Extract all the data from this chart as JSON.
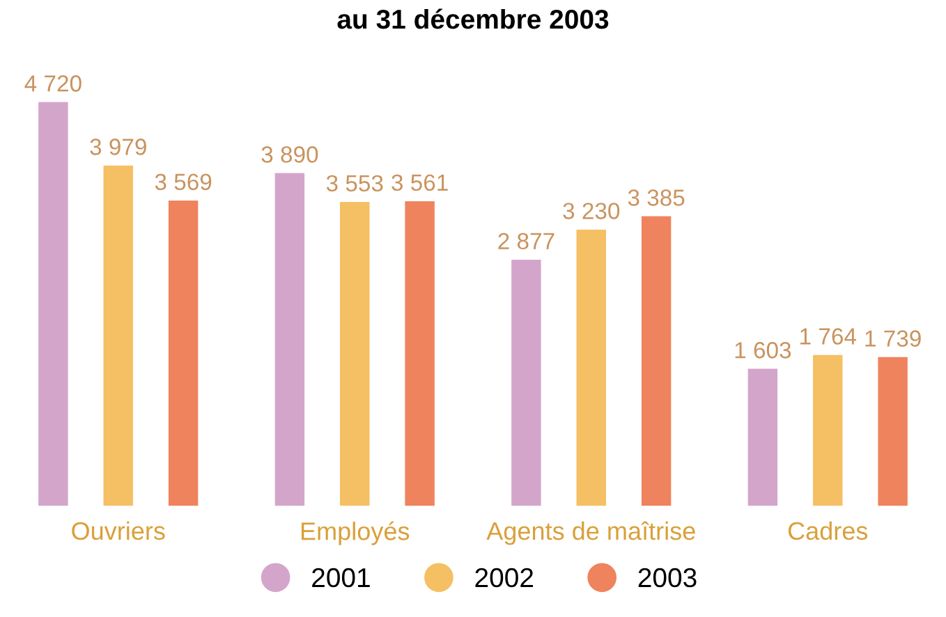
{
  "chart_data": {
    "type": "bar",
    "title": "au 31 décembre 2003",
    "categories": [
      "Ouvriers",
      "Employés",
      "Agents de maîtrise",
      "Cadres"
    ],
    "series": [
      {
        "name": "2001",
        "color": "#d4a5cb",
        "values": [
          4720,
          3890,
          2877,
          1603
        ]
      },
      {
        "name": "2002",
        "color": "#f5bf63",
        "values": [
          3979,
          3553,
          3230,
          1764
        ]
      },
      {
        "name": "2003",
        "color": "#ef835d",
        "values": [
          3569,
          3561,
          3385,
          1739
        ]
      }
    ],
    "data_labels": true,
    "legend": "bottom",
    "grid": false
  }
}
